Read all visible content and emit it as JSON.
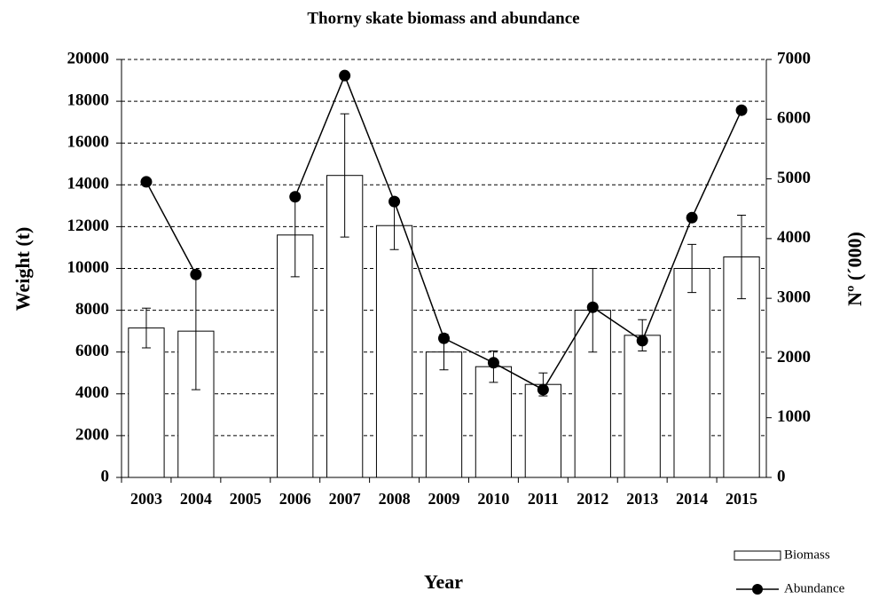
{
  "chart_data": {
    "type": "bar-line",
    "title": "Thorny skate  biomass and abundance",
    "x_label": "Year",
    "y_label": "Weight (t)",
    "y2_label": "Nº (´000)",
    "categories": [
      "2003",
      "2004",
      "2005",
      "2006",
      "2007",
      "2008",
      "2009",
      "2010",
      "2011",
      "2012",
      "2013",
      "2014",
      "2015"
    ],
    "series": [
      {
        "name": "Biomass",
        "type": "bar",
        "color": "#ffffff",
        "values": [
          7150,
          7000,
          null,
          11600,
          14450,
          12050,
          6000,
          5300,
          4450,
          8000,
          6800,
          10000,
          10550
        ],
        "errors": [
          950,
          2800,
          null,
          2000,
          2950,
          1150,
          850,
          750,
          550,
          2000,
          750,
          1150,
          2000
        ]
      },
      {
        "name": "Abundance",
        "type": "line",
        "axis": "y2",
        "color": "#000000",
        "values": [
          4950,
          3400,
          null,
          4700,
          6730,
          4620,
          2330,
          1920,
          1470,
          2850,
          2290,
          4350,
          6150
        ]
      }
    ],
    "ylim": [
      0,
      20000
    ],
    "yticks": [
      0,
      2000,
      4000,
      6000,
      8000,
      10000,
      12000,
      14000,
      16000,
      18000,
      20000
    ],
    "y2lim": [
      0,
      7000
    ],
    "y2ticks": [
      0,
      1000,
      2000,
      3000,
      4000,
      5000,
      6000,
      7000
    ],
    "grid": true,
    "legend": "bottom-right"
  }
}
